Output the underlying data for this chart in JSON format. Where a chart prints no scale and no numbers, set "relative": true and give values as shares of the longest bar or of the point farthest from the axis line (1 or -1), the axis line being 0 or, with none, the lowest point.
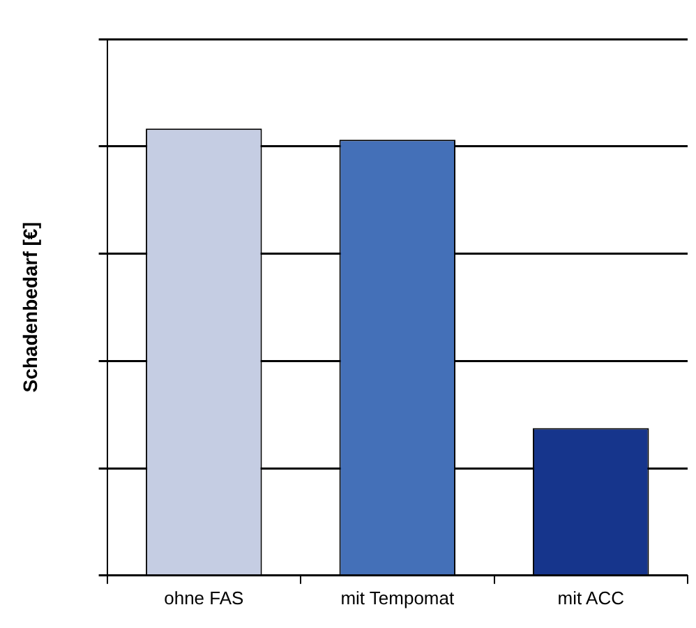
{
  "chart_data": {
    "type": "bar",
    "ylabel": "Schadenbedarf [€]",
    "categories": [
      "ohne FAS",
      "mit Tempomat",
      "mit ACC"
    ],
    "values": [
      1,
      0.975,
      0.33
    ],
    "colors": [
      "#c5cde3",
      "#4470b8",
      "#16358c"
    ],
    "relative": true,
    "grid": "y",
    "legend": false
  }
}
